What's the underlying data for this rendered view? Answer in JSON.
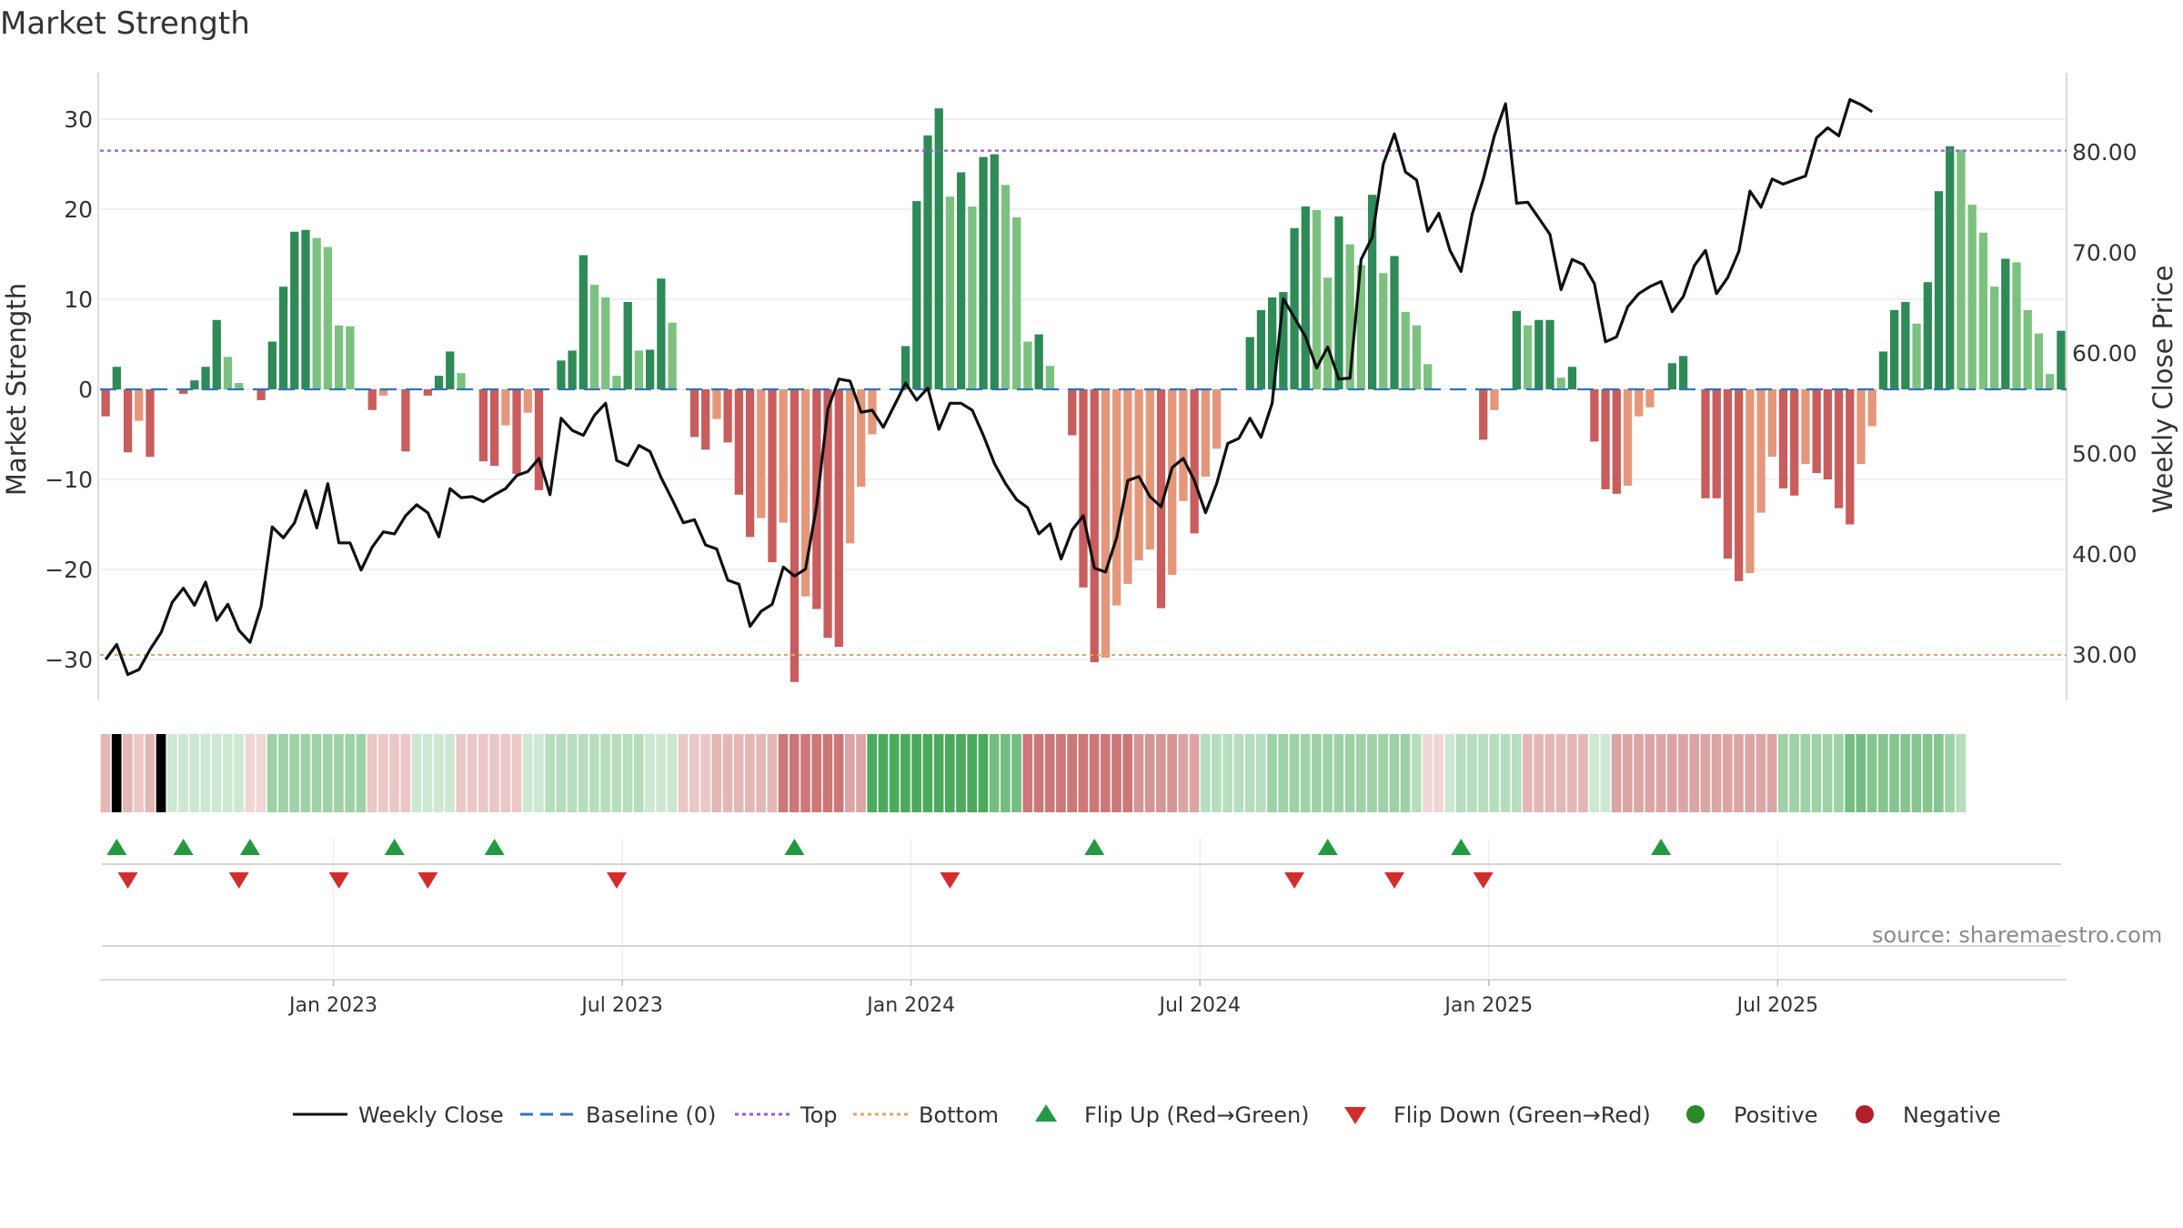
{
  "title": "Market Strength",
  "source": "source: sharemaestro.com",
  "colors": {
    "posDark": "#2e8a56",
    "posLight": "#7cc17f",
    "negDark": "#c95c5c",
    "negLight": "#e4977a",
    "top": "#9b59d6",
    "bottom": "#e2a46b",
    "baseline": "#2f75b5",
    "close": "#111111",
    "flipUp": "#239a42",
    "flipDown": "#d22d2d",
    "positive": "#2a8a2a",
    "negative": "#b0202a"
  },
  "chart_data": {
    "type": "bar+line",
    "title": "Market Strength",
    "ylabel": "Market Strength",
    "y2label": "Weekly Close Price",
    "ylim": [
      -35,
      36
    ],
    "y2lim": [
      23,
      88
    ],
    "y_ticks": [
      30,
      20,
      10,
      0,
      -10,
      -20,
      -30
    ],
    "y_tick_labels": [
      "30",
      "20",
      "10",
      "0",
      "−10",
      "−20",
      "−30"
    ],
    "y2_ticks": [
      80,
      70,
      60,
      50,
      40,
      30
    ],
    "y2_tick_labels": [
      "80.00",
      "70.00",
      "60.00",
      "50.00",
      "40.00",
      "30.00"
    ],
    "x_ticks": [
      {
        "label": "Jan 2023",
        "week": 21
      },
      {
        "label": "Jul 2023",
        "week": 47
      },
      {
        "label": "Jan 2024",
        "week": 73
      },
      {
        "label": "Jul 2024",
        "week": 99
      },
      {
        "label": "Jan 2025",
        "week": 125
      },
      {
        "label": "Jul 2025",
        "week": 151
      }
    ],
    "top_line": 26.5,
    "bottom_line": -29.5,
    "baseline": 0,
    "strength": [
      -3,
      2.5,
      -7,
      -3.5,
      -7.5,
      0,
      0,
      -0.5,
      1,
      2.5,
      7.7,
      3.6,
      0.7,
      0,
      -1.2,
      5.3,
      11.4,
      17.5,
      17.7,
      16.8,
      15.8,
      7.1,
      7,
      0,
      -2.3,
      -0.7,
      0,
      -6.9,
      0,
      -0.7,
      1.5,
      4.2,
      1.8,
      0,
      -8,
      -8.5,
      -4,
      -9.4,
      -2.6,
      -11.2,
      0,
      3.2,
      4.3,
      14.9,
      11.6,
      10.2,
      1.5,
      9.7,
      4.3,
      4.4,
      12.3,
      7.4,
      0,
      -5.3,
      -6.7,
      -3.3,
      -5.9,
      -11.7,
      -16.4,
      -14.3,
      -19.2,
      -14.8,
      -32.5,
      -23,
      -24.4,
      -27.6,
      -28.6,
      -17.1,
      -10.8,
      -5,
      0,
      0,
      4.8,
      20.9,
      28.2,
      31.2,
      21.4,
      24.1,
      20.3,
      25.8,
      26.1,
      22.7,
      19.1,
      5.3,
      6.1,
      2.6,
      0,
      -5.1,
      -22,
      -30.3,
      -29.8,
      -24,
      -21.6,
      -19,
      -17.8,
      -24.3,
      -20.6,
      -12.4,
      -16,
      -9.7,
      -6.6,
      0,
      0,
      5.8,
      8.8,
      10.2,
      10.8,
      17.9,
      20.3,
      19.9,
      12.4,
      19.2,
      16.1,
      13.8,
      21.6,
      12.9,
      14.8,
      8.6,
      7.1,
      2.8,
      0,
      0,
      0,
      0,
      -5.6,
      -2.3,
      0,
      8.7,
      7.1,
      7.7,
      7.7,
      1.3,
      2.5,
      0,
      -5.8,
      -11.1,
      -11.6,
      -10.7,
      -3,
      -2,
      0,
      2.9,
      3.7,
      0,
      -12.1,
      -12.1,
      -18.8,
      -21.3,
      -20.4,
      -13.7,
      -7.5,
      -11,
      -11.8,
      -8.3,
      -9.3,
      -10,
      -13.2,
      -15,
      -8.3,
      -4.1,
      4.2,
      8.8,
      9.7,
      7.3,
      11.9,
      22,
      27,
      26.6,
      20.5,
      17.4,
      11.4,
      14.5,
      14.1,
      8.8,
      6.2,
      1.7,
      6.5
    ],
    "close": [
      29.5,
      31,
      28,
      28.5,
      30.5,
      32.2,
      35.2,
      36.6,
      34.9,
      37.2,
      33.4,
      35,
      32.4,
      31.2,
      34.8,
      42.7,
      41.6,
      43.1,
      46.3,
      42.6,
      47,
      41.1,
      41.1,
      38.4,
      40.7,
      42.2,
      42,
      43.8,
      44.9,
      44.1,
      41.7,
      46.5,
      45.6,
      45.7,
      45.2,
      45.9,
      46.5,
      47.8,
      48.2,
      49.5,
      45.9,
      53.5,
      52.3,
      51.8,
      53.8,
      55,
      49.3,
      48.8,
      50.8,
      50.2,
      47.6,
      45.4,
      43.1,
      43.4,
      40.9,
      40.5,
      37.4,
      37,
      32.8,
      34.3,
      35,
      38.7,
      37.8,
      38.5,
      44.8,
      54.4,
      57.4,
      57.2,
      54.1,
      54.3,
      52.6,
      54.8,
      57,
      55.3,
      56.5,
      52.4,
      55,
      55,
      54.3,
      51.8,
      49,
      47,
      45.4,
      44.6,
      42,
      43,
      39.5,
      42.4,
      43.8,
      38.6,
      38.2,
      41.6,
      47.3,
      47.7,
      45.7,
      44.7,
      48.6,
      49.5,
      47.3,
      44.1,
      47,
      51,
      51.5,
      53.5,
      51.6,
      55,
      65.4,
      63.5,
      61.6,
      58.5,
      60.6,
      57.4,
      57.5,
      69.3,
      71.5,
      78.8,
      81.8,
      78,
      77.2,
      72.1,
      73.9,
      70.2,
      68.1,
      73.8,
      77.3,
      81.6,
      84.8,
      74.9,
      75,
      73.4,
      71.8,
      66.3,
      69.3,
      68.8,
      66.9,
      61.1,
      61.6,
      64.6,
      65.9,
      66.6,
      67.1,
      64.1,
      65.6,
      68.7,
      70.2,
      65.9,
      67.5,
      70.1,
      76.1,
      74.5,
      77.3,
      76.8,
      77.2,
      77.6,
      81.4,
      82.4,
      81.6,
      85.2,
      84.7,
      84
    ],
    "band_levels": [
      -3,
      0.5,
      -3,
      -2,
      -3,
      0.5,
      1,
      1,
      1,
      1,
      1,
      1,
      1,
      -1,
      -1,
      3,
      3,
      3,
      3,
      3,
      3,
      3,
      3,
      3,
      -2,
      -2,
      -2,
      -2,
      1,
      1,
      1,
      1,
      -2,
      -2,
      -2,
      -2,
      -2,
      -2,
      1,
      1,
      2,
      2,
      2,
      2,
      2,
      2,
      2,
      2,
      2,
      1,
      1,
      1,
      -2,
      -2,
      -2,
      -3,
      -3,
      -3,
      -3,
      -3,
      -3,
      -6,
      -6,
      -6,
      -6,
      -6,
      -6,
      -4,
      -4,
      7,
      7,
      7,
      7,
      7,
      7,
      7,
      7,
      7,
      7,
      7,
      5,
      5,
      5,
      -6,
      -6,
      -6,
      -6,
      -6,
      -6,
      -6,
      -6,
      -6,
      -6,
      -5,
      -5,
      -5,
      -5,
      -4,
      -4,
      2,
      2,
      2,
      2,
      2,
      2,
      3,
      3,
      3,
      3,
      3,
      3,
      3,
      3,
      3,
      3,
      3,
      3,
      3,
      2,
      -1,
      -1,
      1,
      2,
      2,
      2,
      2,
      2,
      2,
      -3,
      -3,
      -3,
      -3,
      -3,
      -3,
      1,
      1,
      -4,
      -4,
      -4,
      -4,
      -4,
      -4,
      -4,
      -4,
      -4,
      -4,
      -4,
      -4,
      -4,
      -4,
      -4,
      3,
      3,
      3,
      3,
      3,
      3,
      5,
      5,
      4,
      4,
      4,
      4,
      4,
      4,
      4,
      3,
      2
    ],
    "flip_up": [
      1,
      7,
      13,
      26,
      35,
      62,
      89,
      110,
      122,
      140
    ],
    "flip_down": [
      2,
      12,
      21,
      29,
      46,
      76,
      107,
      116,
      124
    ],
    "legend": [
      "Weekly Close",
      "Baseline (0)",
      "Top",
      "Bottom",
      "Flip Up (Red→Green)",
      "Flip Down (Green→Red)",
      "Positive",
      "Negative"
    ]
  }
}
